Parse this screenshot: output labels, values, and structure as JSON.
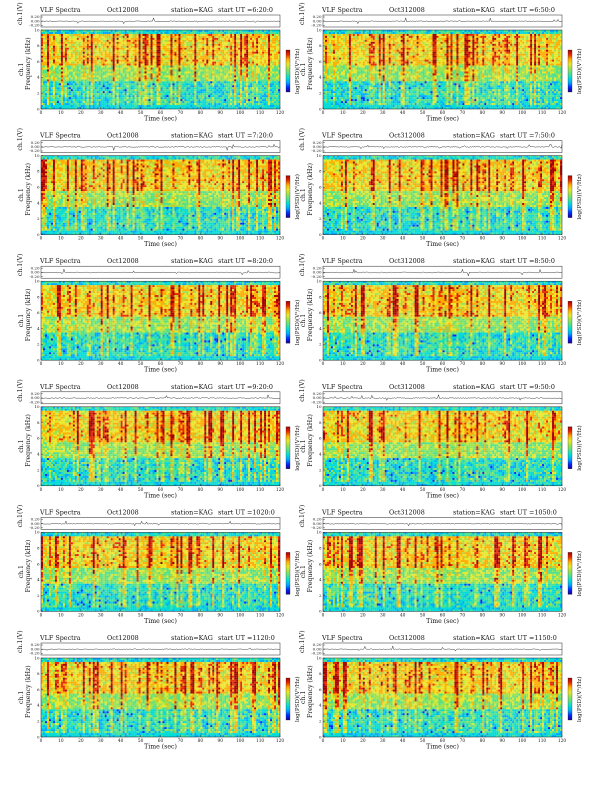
{
  "colors": {
    "scale": [
      "#1a0090",
      "#0028ff",
      "#00a6ff",
      "#00dcd8",
      "#4fe28e",
      "#9de24c",
      "#e8e82a",
      "#ffae00",
      "#e82800",
      "#a40000"
    ],
    "background": "#ffffff",
    "trace": "#222222"
  },
  "labels": {
    "ch_axis": "ch.1(V)",
    "freq_axis_unit": "Frequency (kHz)",
    "freq_axis_name": "ch.1",
    "time_axis": "Time (sec)",
    "colorbar": "log(PSD)(V²/Hz)"
  },
  "panels": [
    {
      "row": 0,
      "col": 0,
      "title": "VLF Spectra",
      "date": "Oct12008",
      "station": "station=KAG",
      "start": "start UT =6:20:0"
    },
    {
      "row": 0,
      "col": 1,
      "title": "VLF Spectra",
      "date": "Oct312008",
      "station": "station=KAG",
      "start": "start UT =6:50:0"
    },
    {
      "row": 1,
      "col": 0,
      "title": "VLF Spectra",
      "date": "Oct12008",
      "station": "station=KAG",
      "start": "start UT =7:20:0"
    },
    {
      "row": 1,
      "col": 1,
      "title": "VLF Spectra",
      "date": "Oct312008",
      "station": "station=KAG",
      "start": "start UT =7:50:0"
    },
    {
      "row": 2,
      "col": 0,
      "title": "VLF Spectra",
      "date": "Oct12008",
      "station": "station=KAG",
      "start": "start UT =8:20:0"
    },
    {
      "row": 2,
      "col": 1,
      "title": "VLF Spectra",
      "date": "Oct312008",
      "station": "station=KAG",
      "start": "start UT =8:50:0"
    },
    {
      "row": 3,
      "col": 0,
      "title": "VLF Spectra",
      "date": "Oct12008",
      "station": "station=KAG",
      "start": "start UT =9:20:0"
    },
    {
      "row": 3,
      "col": 1,
      "title": "VLF Spectra",
      "date": "Oct312008",
      "station": "station=KAG",
      "start": "start UT =9:50:0"
    },
    {
      "row": 4,
      "col": 0,
      "title": "VLF Spectra",
      "date": "Oct12008",
      "station": "station=KAG",
      "start": "start UT =1020:0"
    },
    {
      "row": 4,
      "col": 1,
      "title": "VLF Spectra",
      "date": "Oct312008",
      "station": "station=KAG",
      "start": "start UT =1050:0"
    },
    {
      "row": 5,
      "col": 0,
      "title": "VLF Spectra",
      "date": "Oct12008",
      "station": "station=KAG",
      "start": "start UT =1120:0"
    },
    {
      "row": 5,
      "col": 1,
      "title": "VLF Spectra",
      "date": "Oct312008",
      "station": "station=KAG",
      "start": "start UT =1150:0"
    }
  ],
  "chart_data": {
    "type": "heatmap",
    "x_ticks": [
      0,
      10,
      20,
      30,
      40,
      50,
      60,
      70,
      80,
      90,
      100,
      110,
      120
    ],
    "xlim": [
      0,
      120
    ],
    "y_ticks": [
      0,
      2,
      4,
      6,
      8,
      10
    ],
    "ylim": [
      0,
      10
    ],
    "ch_ticks": [
      "0.20",
      "0.00",
      "-0.20"
    ],
    "ch_lim": [
      -0.2,
      0.2
    ]
  }
}
